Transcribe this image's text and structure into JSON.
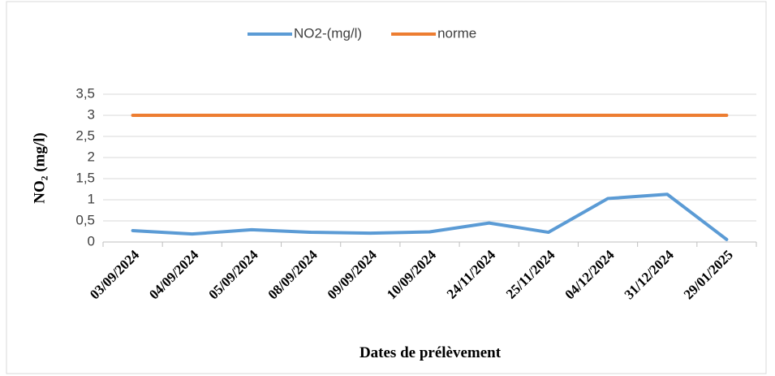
{
  "chart_data": {
    "type": "line",
    "categories": [
      "03/09/2024",
      "04/09/2024",
      "05/09/2024",
      "08/09/2024",
      "09/09/2024",
      "10/09/2024",
      "24/11/2024",
      "25/11/2024",
      "04/12/2024",
      "31/12/2024",
      "29/01/2025"
    ],
    "series": [
      {
        "name": "NO2-(mg/l)",
        "color": "#5b9bd5",
        "values": [
          0.27,
          0.19,
          0.29,
          0.23,
          0.21,
          0.24,
          0.45,
          0.23,
          1.03,
          1.13,
          0.06
        ]
      },
      {
        "name": "norme",
        "color": "#ed7d31",
        "values": [
          3,
          3,
          3,
          3,
          3,
          3,
          3,
          3,
          3,
          3,
          3
        ]
      }
    ],
    "x_label": "Dates de prélèvement",
    "y_label": "NO₂ (mg/l)",
    "ylim": [
      0,
      3.5
    ],
    "yticks": [
      0,
      {
        "value": 0.5,
        "label": "0,5"
      },
      1,
      {
        "value": 1.5,
        "label": "1,5"
      },
      2,
      {
        "value": 2.5,
        "label": "2,5"
      },
      3,
      {
        "value": 3.5,
        "label": "3,5"
      }
    ],
    "grid": true,
    "legend": "top"
  }
}
